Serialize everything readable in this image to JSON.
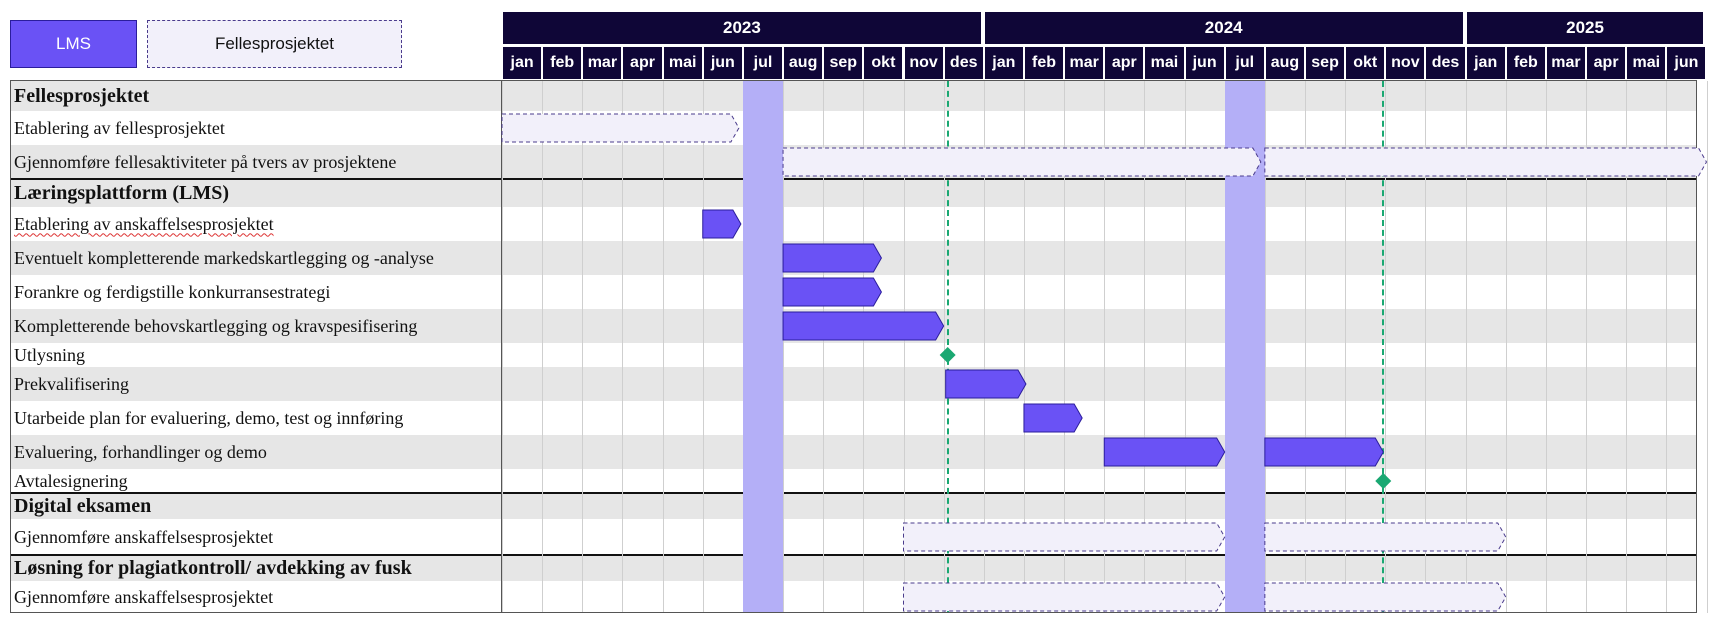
{
  "legend": {
    "lms_label": "LMS",
    "felles_label": "Fellesprosjektet",
    "lms_color": "#6a52f5",
    "felles_color": "#f2f0fa"
  },
  "chart_data": {
    "type": "gantt",
    "years": [
      {
        "label": "2023",
        "start": 0,
        "end": 12
      },
      {
        "label": "2024",
        "start": 12,
        "end": 24
      },
      {
        "label": "2025",
        "start": 24,
        "end": 30
      }
    ],
    "months": [
      "jan",
      "feb",
      "mar",
      "apr",
      "mai",
      "jun",
      "jul",
      "aug",
      "sep",
      "okt",
      "nov",
      "des",
      "jan",
      "feb",
      "mar",
      "apr",
      "mai",
      "jun",
      "jul",
      "aug",
      "sep",
      "okt",
      "nov",
      "des",
      "jan",
      "feb",
      "mar",
      "apr",
      "mai",
      "jun"
    ],
    "summer_highlights": [
      6,
      18
    ],
    "milestone_lines": [
      11.1,
      21.95
    ],
    "rows": [
      {
        "label": "Fellesprosjektet",
        "kind": "section",
        "shaded": true
      },
      {
        "label": "Etablering av fellesprosjektet",
        "shaded": false,
        "bars": [
          {
            "start": 0,
            "end": 5.9,
            "style": "felles"
          }
        ]
      },
      {
        "label": "Gjennomføre fellesaktiviteter på tvers av prosjektene",
        "shaded": true,
        "bars": [
          {
            "start": 7,
            "end": 18.9,
            "style": "felles"
          },
          {
            "start": 19,
            "end": 30.0,
            "style": "felles"
          }
        ]
      },
      {
        "label": "Læringsplattform (LMS)",
        "kind": "section",
        "shaded": true
      },
      {
        "label": "Etablering av anskaffelsesprosjektet",
        "shaded": false,
        "spell": true,
        "bars": [
          {
            "start": 5,
            "end": 5.95,
            "style": "lms"
          }
        ]
      },
      {
        "label": "Eventuelt kompletterende markedskartlegging og -analyse",
        "shaded": true,
        "bars": [
          {
            "start": 7,
            "end": 9.45,
            "style": "lms"
          }
        ]
      },
      {
        "label": "Forankre og ferdigstille konkurransestrategi",
        "shaded": false,
        "bars": [
          {
            "start": 7,
            "end": 9.45,
            "style": "lms"
          }
        ]
      },
      {
        "label": "Kompletterende behovskartlegging og kravspesifisering",
        "shaded": true,
        "bars": [
          {
            "start": 7,
            "end": 11.0,
            "style": "lms"
          }
        ]
      },
      {
        "label": "Utlysning",
        "shaded": false,
        "milestone": 11.1
      },
      {
        "label": "Prekvalifisering",
        "shaded": true,
        "bars": [
          {
            "start": 11.05,
            "end": 13.05,
            "style": "lms"
          }
        ]
      },
      {
        "label": "Utarbeide plan for evaluering, demo, test og innføring",
        "shaded": false,
        "bars": [
          {
            "start": 13.0,
            "end": 14.45,
            "style": "lms"
          }
        ]
      },
      {
        "label": "Evaluering, forhandlinger og demo",
        "shaded": true,
        "bars": [
          {
            "start": 15.0,
            "end": 18.0,
            "style": "lms"
          },
          {
            "start": 19.0,
            "end": 21.95,
            "style": "lms"
          }
        ]
      },
      {
        "label": "Avtalesignering",
        "shaded": false,
        "milestone": 21.95
      },
      {
        "label": "Digital eksamen",
        "kind": "section",
        "shaded": true
      },
      {
        "label": "Gjennomføre anskaffelsesprosjektet",
        "shaded": false,
        "bars": [
          {
            "start": 10.0,
            "end": 18.0,
            "style": "felles"
          },
          {
            "start": 19.0,
            "end": 25.0,
            "style": "felles"
          }
        ]
      },
      {
        "label": "Løsning for plagiatkontroll/ avdekking av fusk",
        "kind": "section",
        "shaded": true
      },
      {
        "label": "Gjennomføre anskaffelsesprosjektet",
        "shaded": false,
        "bars": [
          {
            "start": 10.0,
            "end": 18.0,
            "style": "felles"
          },
          {
            "start": 19.0,
            "end": 25.0,
            "style": "felles"
          }
        ]
      }
    ]
  }
}
